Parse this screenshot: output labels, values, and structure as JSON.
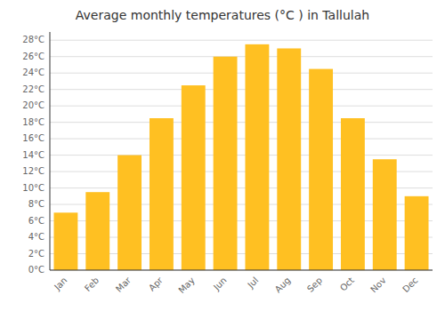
{
  "chart_data": {
    "type": "bar",
    "title": "Average monthly temperatures (°C ) in Tallulah",
    "categories": [
      "Jan",
      "Feb",
      "Mar",
      "Apr",
      "May",
      "Jun",
      "Jul",
      "Aug",
      "Sep",
      "Oct",
      "Nov",
      "Dec"
    ],
    "values": [
      7.0,
      9.5,
      14.0,
      18.5,
      22.5,
      26.0,
      27.5,
      27.0,
      24.5,
      18.5,
      13.5,
      9.0
    ],
    "color": "#FFC022",
    "ylim": [
      0,
      29
    ],
    "yticks": [
      {
        "value": 0,
        "label": "0°C"
      },
      {
        "value": 2,
        "label": "2°C"
      },
      {
        "value": 4,
        "label": "4°C"
      },
      {
        "value": 6,
        "label": "6°C"
      },
      {
        "value": 8,
        "label": "8°C"
      },
      {
        "value": 10,
        "label": "10°C"
      },
      {
        "value": 12,
        "label": "12°C"
      },
      {
        "value": 14,
        "label": "14°C"
      },
      {
        "value": 16,
        "label": "16°C"
      },
      {
        "value": 18,
        "label": "18°C"
      },
      {
        "value": 20,
        "label": "20°C"
      },
      {
        "value": 22,
        "label": "22°C"
      },
      {
        "value": 24,
        "label": "24°C"
      },
      {
        "value": 26,
        "label": "26°C"
      },
      {
        "value": 28,
        "label": "28°C"
      }
    ],
    "grid": true
  }
}
